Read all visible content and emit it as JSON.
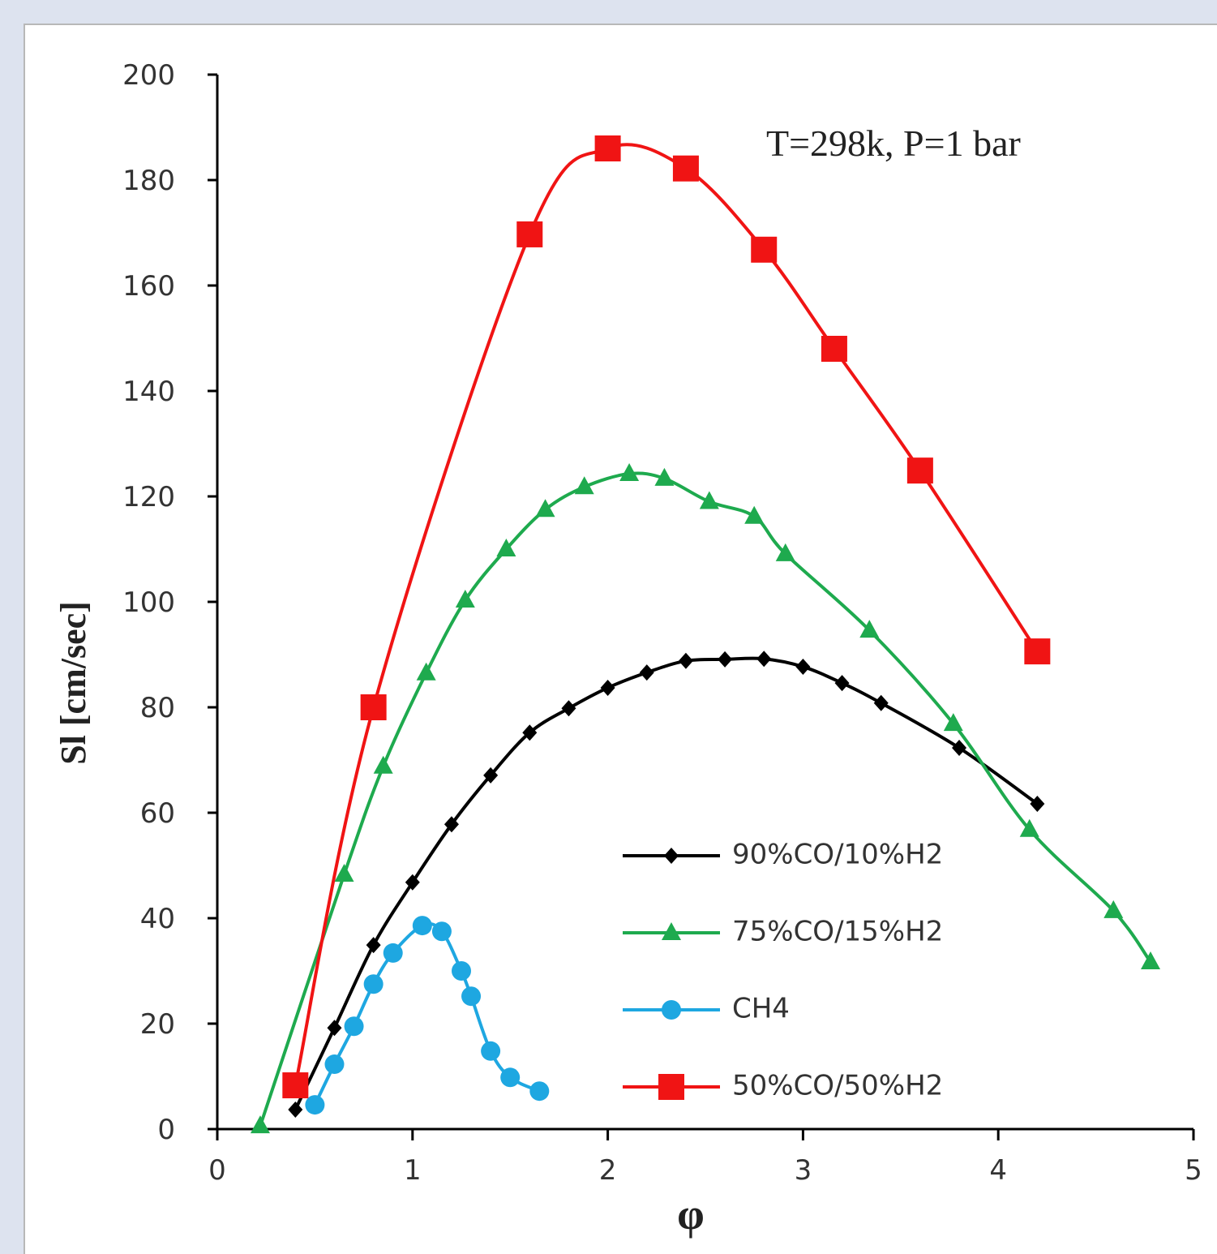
{
  "chart_data": {
    "type": "line",
    "annotation": "T=298k, P=1 bar",
    "x_label": "φ",
    "y_label": "Sl [cm/sec]",
    "xlim": [
      0,
      5
    ],
    "xticks": [
      0,
      1,
      2,
      3,
      4,
      5
    ],
    "ylim": [
      0,
      200
    ],
    "yticks": [
      0,
      20,
      40,
      60,
      80,
      100,
      120,
      140,
      160,
      180,
      200
    ],
    "legend": "lower right",
    "series": [
      {
        "name": "90%CO/10%H2",
        "color": "#000000",
        "marker": "diamond",
        "x": [
          0.4,
          0.6,
          0.8,
          1.0,
          1.2,
          1.4,
          1.6,
          1.8,
          2.0,
          2.2,
          2.4,
          2.6,
          2.8,
          3.0,
          3.2,
          3.4,
          3.8,
          4.2
        ],
        "values": [
          3.7,
          19.2,
          34.9,
          46.8,
          57.8,
          67.1,
          75.2,
          79.8,
          83.7,
          86.6,
          88.8,
          89.1,
          89.2,
          87.7,
          84.6,
          80.8,
          72.3,
          61.7
        ]
      },
      {
        "name": "75%CO/15%H2",
        "color": "#1eaa4e",
        "marker": "triangle",
        "x": [
          0.22,
          0.65,
          0.85,
          1.07,
          1.27,
          1.48,
          1.68,
          1.88,
          2.11,
          2.29,
          2.52,
          2.75,
          2.91,
          3.34,
          3.77,
          4.16,
          4.59,
          4.78
        ],
        "values": [
          0.6,
          48.3,
          68.8,
          86.5,
          100.3,
          110,
          117.5,
          121.8,
          124.3,
          123.4,
          119,
          116.2,
          109.1,
          94.6,
          76.9,
          56.8,
          41.4,
          31.7
        ]
      },
      {
        "name": "CH4",
        "color": "#1ea7e1",
        "marker": "circle",
        "x": [
          0.5,
          0.6,
          0.7,
          0.8,
          0.9,
          1.05,
          1.15,
          1.25,
          1.3,
          1.4,
          1.5,
          1.65
        ],
        "values": [
          4.6,
          12.3,
          19.5,
          27.5,
          33.4,
          38.6,
          37.5,
          30,
          25.2,
          14.8,
          9.8,
          7.2
        ]
      },
      {
        "name": "50%CO/50%H2",
        "color": "#f01414",
        "marker": "square",
        "x": [
          0.4,
          0.8,
          1.6,
          2.0,
          2.4,
          2.8,
          3.16,
          3.6,
          4.2
        ],
        "values": [
          8.3,
          80,
          169.7,
          186,
          182.2,
          166.8,
          148,
          124.9,
          90.6
        ]
      }
    ]
  }
}
